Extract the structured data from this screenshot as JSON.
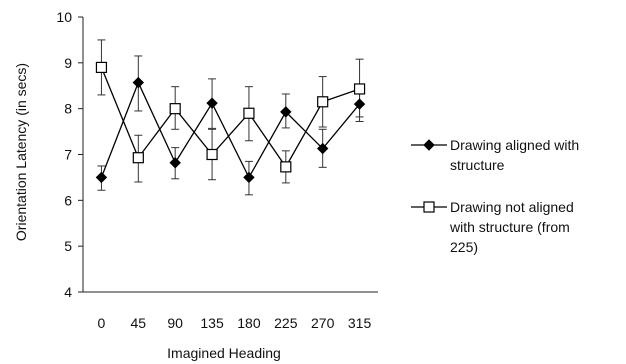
{
  "chart_data": {
    "type": "line",
    "xlabel": "Imagined Heading",
    "ylabel": "Orientation Latency (in secs)",
    "categories": [
      "0",
      "45",
      "90",
      "135",
      "180",
      "225",
      "270",
      "315"
    ],
    "ylim": [
      4,
      10
    ],
    "yticks": [
      "4",
      "5",
      "6",
      "7",
      "8",
      "9",
      "10"
    ],
    "grid": false,
    "legend_position": "right",
    "series": [
      {
        "name": "Drawing aligned with\nstructure",
        "marker": "filled-diamond",
        "color": "#000000",
        "values": [
          6.5,
          8.57,
          6.82,
          8.12,
          6.5,
          7.93,
          7.13,
          8.1
        ],
        "err_low": [
          6.22,
          7.95,
          6.47,
          7.57,
          6.12,
          7.58,
          6.72,
          7.72
        ],
        "err_high": [
          6.75,
          9.15,
          7.15,
          8.65,
          6.85,
          8.32,
          7.55,
          8.5
        ]
      },
      {
        "name": "Drawing not aligned\nwith structure (from\n225)",
        "marker": "open-square",
        "color": "#000000",
        "values": [
          8.9,
          6.93,
          8.0,
          7.0,
          7.9,
          6.73,
          8.15,
          8.43
        ],
        "err_low": [
          8.3,
          6.4,
          7.55,
          6.45,
          7.3,
          6.38,
          7.6,
          7.82
        ],
        "err_high": [
          9.5,
          7.42,
          8.48,
          7.55,
          8.48,
          7.08,
          8.7,
          9.08
        ]
      }
    ]
  }
}
